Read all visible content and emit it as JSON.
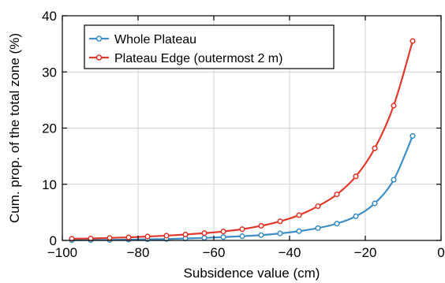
{
  "chart_data": {
    "type": "line",
    "title": "",
    "xlabel": "Subsidence value (cm)",
    "ylabel": "Cum. prop. of the total zone (%)",
    "xlim": [
      -100,
      0
    ],
    "ylim": [
      0,
      40
    ],
    "x_ticks": [
      -100,
      -80,
      -60,
      -40,
      -20,
      0
    ],
    "y_ticks": [
      0,
      10,
      20,
      30,
      40
    ],
    "x_tick_labels": [
      "−100",
      "−80",
      "−60",
      "−40",
      "−20",
      "0"
    ],
    "y_tick_labels": [
      "0",
      "10",
      "20",
      "30",
      "40"
    ],
    "grid": true,
    "legend_position": "top-left",
    "series": [
      {
        "name": "Whole Plateau",
        "color": "#3f8fc4",
        "x": [
          -97.5,
          -92.5,
          -87.5,
          -82.5,
          -77.5,
          -72.5,
          -67.5,
          -62.5,
          -57.5,
          -52.5,
          -47.5,
          -42.5,
          -37.5,
          -32.5,
          -27.5,
          -22.5,
          -17.5,
          -12.5,
          -7.5
        ],
        "y": [
          0.05,
          0.08,
          0.1,
          0.15,
          0.2,
          0.25,
          0.35,
          0.45,
          0.6,
          0.75,
          0.95,
          1.25,
          1.65,
          2.2,
          3.0,
          4.3,
          6.6,
          10.8,
          18.6
        ]
      },
      {
        "name": "Plateau Edge (outermost 2 m)",
        "color": "#e03a2e",
        "x": [
          -97.5,
          -92.5,
          -87.5,
          -82.5,
          -77.5,
          -72.5,
          -67.5,
          -62.5,
          -57.5,
          -52.5,
          -47.5,
          -42.5,
          -37.5,
          -32.5,
          -27.5,
          -22.5,
          -17.5,
          -12.5,
          -7.5
        ],
        "y": [
          0.3,
          0.35,
          0.45,
          0.55,
          0.7,
          0.85,
          1.05,
          1.3,
          1.6,
          2.0,
          2.6,
          3.4,
          4.5,
          6.1,
          8.2,
          11.4,
          16.4,
          24.0,
          35.5
        ]
      }
    ]
  }
}
